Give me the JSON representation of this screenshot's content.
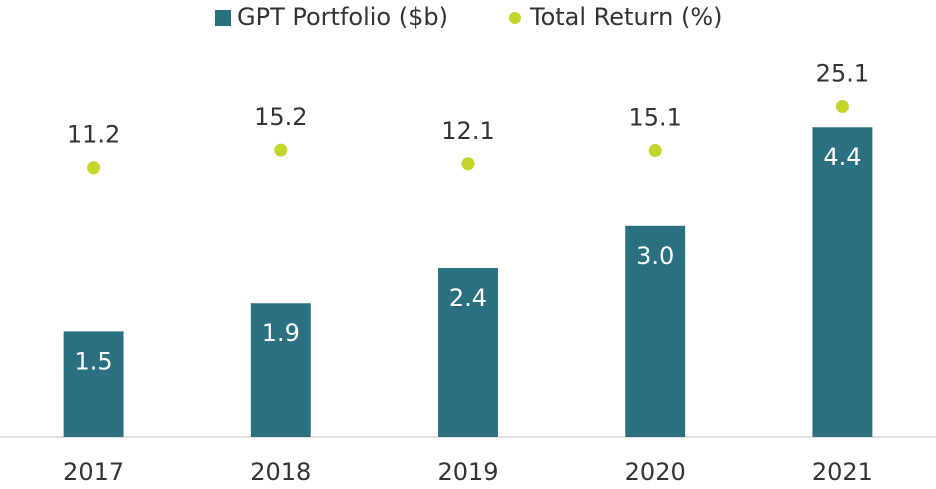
{
  "chart_data": {
    "type": "bar_dot",
    "categories": [
      "2017",
      "2018",
      "2019",
      "2020",
      "2021"
    ],
    "series": [
      {
        "name": "GPT Portfolio ($b)",
        "color": "#2a7080",
        "type": "bar",
        "values": [
          1.5,
          1.9,
          2.4,
          3.0,
          4.4
        ],
        "value_labels": [
          "1.5",
          "1.9",
          "2.4",
          "3.0",
          "4.4"
        ]
      },
      {
        "name": "Total Return (%)",
        "color": "#c3d52a",
        "type": "dot",
        "axis": "y2",
        "values": [
          11.2,
          15.2,
          12.1,
          15.1,
          25.1
        ]
      }
    ],
    "ylim": [
      0,
      5
    ],
    "y2lim": [
      -50,
      30
    ],
    "legend": "top"
  }
}
